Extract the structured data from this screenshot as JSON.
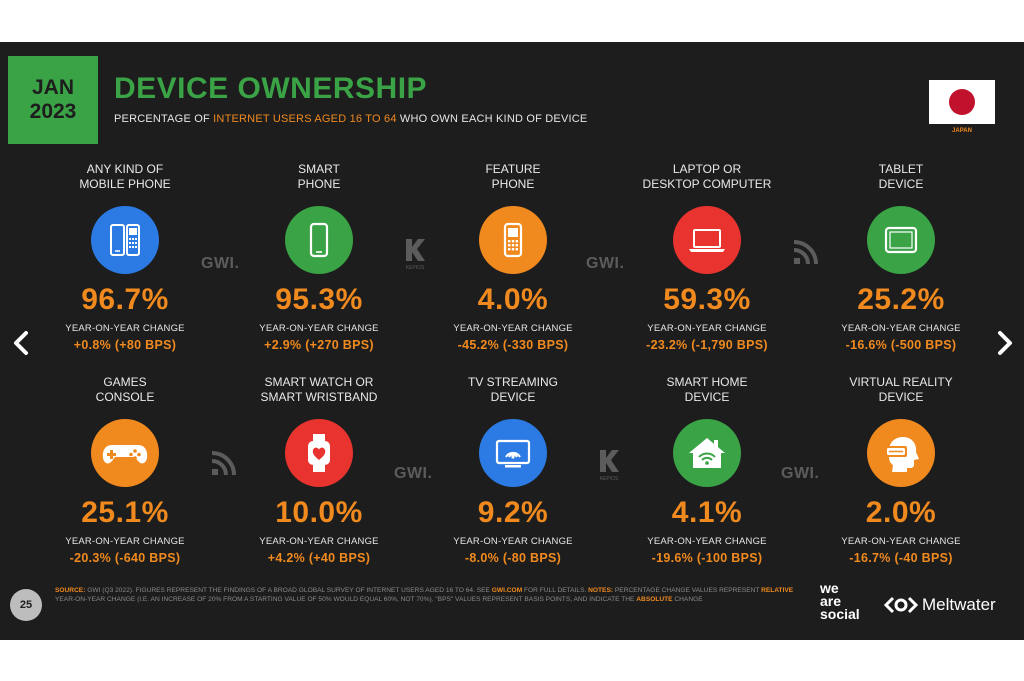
{
  "header": {
    "month": "JAN",
    "year": "2023",
    "title": "DEVICE OWNERSHIP",
    "subtitle_prefix": "PERCENTAGE OF ",
    "subtitle_highlight": "INTERNET USERS AGED 16 TO 64",
    "subtitle_suffix": " WHO OWN EACH KIND OF DEVICE",
    "country": "JAPAN"
  },
  "colors": {
    "background": "#1d1d1d",
    "accent_green": "#3aa346",
    "accent_orange": "#f08a1f"
  },
  "yoy_label": "YEAR-ON-YEAR CHANGE",
  "devices": [
    {
      "label_line1": "ANY KIND OF",
      "label_line2": "MOBILE PHONE",
      "value": "96.7%",
      "change": "+0.8% (+80 BPS)",
      "icon": "mobile-phones-icon",
      "icon_color": "#2c7be5"
    },
    {
      "label_line1": "SMART",
      "label_line2": "PHONE",
      "value": "95.3%",
      "change": "+2.9% (+270 BPS)",
      "icon": "smartphone-icon",
      "icon_color": "#3aa346"
    },
    {
      "label_line1": "FEATURE",
      "label_line2": "PHONE",
      "value": "4.0%",
      "change": "-45.2% (-330 BPS)",
      "icon": "feature-phone-icon",
      "icon_color": "#f08a1f"
    },
    {
      "label_line1": "LAPTOP OR",
      "label_line2": "DESKTOP COMPUTER",
      "value": "59.3%",
      "change": "-23.2% (-1,790 BPS)",
      "icon": "laptop-icon",
      "icon_color": "#e8332f"
    },
    {
      "label_line1": "TABLET",
      "label_line2": "DEVICE",
      "value": "25.2%",
      "change": "-16.6% (-500 BPS)",
      "icon": "tablet-icon",
      "icon_color": "#3aa346"
    },
    {
      "label_line1": "GAMES",
      "label_line2": "CONSOLE",
      "value": "25.1%",
      "change": "-20.3% (-640 BPS)",
      "icon": "gamepad-icon",
      "icon_color": "#f08a1f"
    },
    {
      "label_line1": "SMART WATCH OR",
      "label_line2": "SMART WRISTBAND",
      "value": "10.0%",
      "change": "+4.2% (+40 BPS)",
      "icon": "smartwatch-icon",
      "icon_color": "#e8332f"
    },
    {
      "label_line1": "TV STREAMING",
      "label_line2": "DEVICE",
      "value": "9.2%",
      "change": "-8.0% (-80 BPS)",
      "icon": "tv-streaming-icon",
      "icon_color": "#2c7be5"
    },
    {
      "label_line1": "SMART HOME",
      "label_line2": "DEVICE",
      "value": "4.1%",
      "change": "-19.6% (-100 BPS)",
      "icon": "smart-home-icon",
      "icon_color": "#3aa346"
    },
    {
      "label_line1": "VIRTUAL REALITY",
      "label_line2": "DEVICE",
      "value": "2.0%",
      "change": "-16.7% (-40 BPS)",
      "icon": "vr-headset-icon",
      "icon_color": "#f08a1f"
    }
  ],
  "watermarks": {
    "gwi": "GWI.",
    "kepios": "KEPIOS"
  },
  "footer": {
    "page_number": "25",
    "source_label": "SOURCE:",
    "source_text": " GWI (Q3 2022). FIGURES REPRESENT THE FINDINGS OF A BROAD GLOBAL SURVEY OF INTERNET USERS AGED 16 TO 64. SEE ",
    "source_link": "GWI.COM",
    "source_after": " FOR FULL DETAILS. ",
    "notes_label": "NOTES:",
    "notes_text": " PERCENTAGE CHANGE VALUES REPRESENT ",
    "relative_word": "RELATIVE",
    "notes_text2": " YEAR-ON-YEAR CHANGE (I.E. AN INCREASE OF 20% FROM A STARTING VALUE OF 50% WOULD EQUAL 60%, NOT 70%). \"BPS\" VALUES REPRESENT BASIS POINTS, AND INDICATE THE ",
    "absolute_word": "ABSOLUTE",
    "notes_end": " CHANGE",
    "brand1_line1": "we",
    "brand1_line2": "are",
    "brand1_line3": "social",
    "brand2": "Meltwater"
  }
}
